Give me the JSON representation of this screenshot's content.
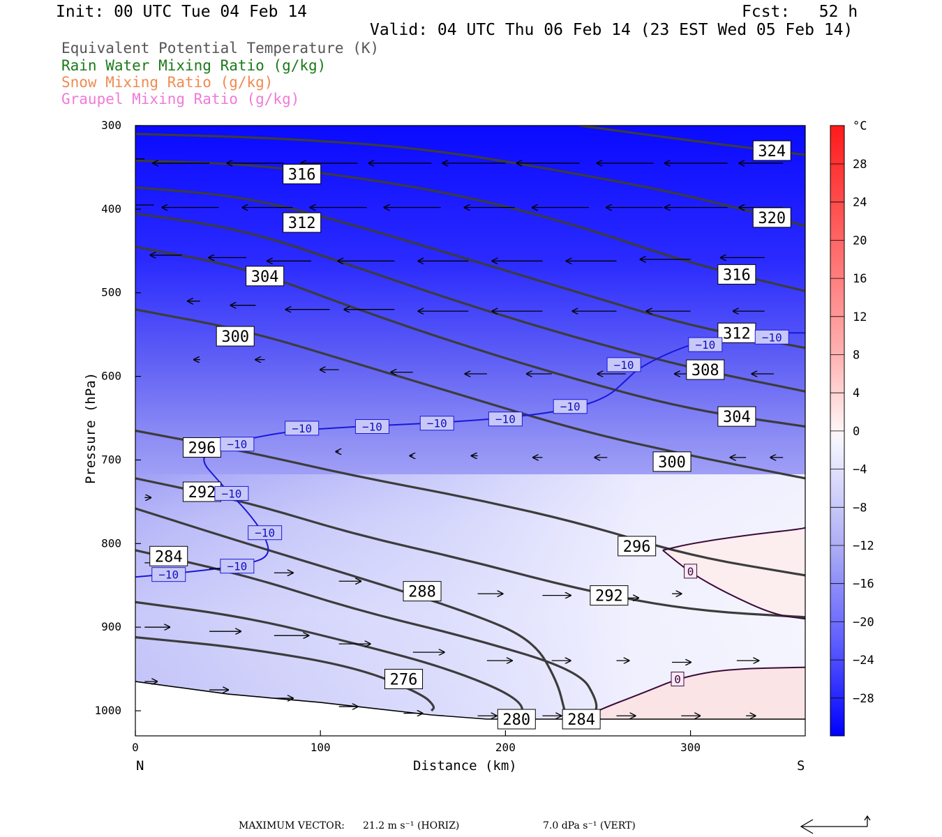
{
  "header": {
    "init": "Init: 00 UTC Tue 04 Feb 14",
    "fcst": "Fcst:   52 h",
    "valid": "Valid: 04 UTC Thu 06 Feb 14 (23 EST Wed 05 Feb 14)"
  },
  "legend": [
    {
      "label": "Equivalent Potential Temperature (K)",
      "color": "#555555"
    },
    {
      "label": "Rain Water Mixing Ratio (g/kg)",
      "color": "#1a7a1a"
    },
    {
      "label": "Snow Mixing Ratio (g/kg)",
      "color": "#f08a50"
    },
    {
      "label": "Graupel Mixing Ratio (g/kg)",
      "color": "#f07ad8"
    }
  ],
  "axes": {
    "ylabel": "Pressure (hPa)",
    "xlabel": "Distance (km)",
    "left_end": "N",
    "right_end": "S"
  },
  "footer": {
    "max_vector_label": "MAXIMUM VECTOR:",
    "horiz": "21.2 m s⁻¹ (HORIZ)",
    "vert": "7.0 dPa s⁻¹ (VERT)"
  },
  "colorbar": {
    "unit": "°C",
    "labels": [
      "28",
      "24",
      "20",
      "16",
      "12",
      "8",
      "4",
      "0",
      "−4",
      "−8",
      "−12",
      "−16",
      "−20",
      "−24",
      "−28"
    ]
  },
  "chart_data": {
    "type": "cross-section",
    "x_ticks": [
      "0",
      "100",
      "200",
      "300"
    ],
    "y_ticks": [
      "300",
      "400",
      "500",
      "600",
      "700",
      "800",
      "900",
      "1000"
    ],
    "xlim": [
      0,
      362
    ],
    "ylim": [
      300,
      1030
    ],
    "theta_e": [
      {
        "label": "324",
        "pts": [
          [
            240,
            300
          ],
          [
            300,
            318
          ],
          [
            362,
            335
          ]
        ]
      },
      {
        "label": "320",
        "pts": [
          [
            0,
            310
          ],
          [
            80,
            315
          ],
          [
            160,
            328
          ],
          [
            240,
            358
          ],
          [
            300,
            384
          ],
          [
            362,
            420
          ]
        ]
      },
      {
        "label": "316",
        "pts": [
          [
            0,
            342
          ],
          [
            60,
            346
          ],
          [
            120,
            362
          ],
          [
            180,
            385
          ],
          [
            240,
            420
          ],
          [
            300,
            465
          ],
          [
            362,
            498
          ]
        ]
      },
      {
        "label": "312",
        "pts": [
          [
            0,
            374
          ],
          [
            60,
            385
          ],
          [
            120,
            420
          ],
          [
            180,
            460
          ],
          [
            240,
            500
          ],
          [
            300,
            540
          ],
          [
            362,
            566
          ]
        ]
      },
      {
        "label": "308",
        "pts": [
          [
            0,
            405
          ],
          [
            60,
            425
          ],
          [
            120,
            470
          ],
          [
            180,
            515
          ],
          [
            240,
            555
          ],
          [
            300,
            590
          ],
          [
            362,
            618
          ]
        ]
      },
      {
        "label": "304",
        "pts": [
          [
            0,
            445
          ],
          [
            60,
            470
          ],
          [
            120,
            520
          ],
          [
            180,
            565
          ],
          [
            240,
            605
          ],
          [
            300,
            640
          ],
          [
            362,
            660
          ]
        ]
      },
      {
        "label": "300",
        "pts": [
          [
            0,
            520
          ],
          [
            60,
            545
          ],
          [
            120,
            585
          ],
          [
            180,
            625
          ],
          [
            240,
            665
          ],
          [
            300,
            695
          ],
          [
            362,
            722
          ]
        ]
      },
      {
        "label": "296",
        "pts": [
          [
            0,
            665
          ],
          [
            60,
            690
          ],
          [
            120,
            720
          ],
          [
            180,
            745
          ],
          [
            240,
            775
          ],
          [
            300,
            815
          ],
          [
            362,
            838
          ]
        ]
      },
      {
        "label": "292",
        "pts": [
          [
            0,
            722
          ],
          [
            60,
            750
          ],
          [
            120,
            790
          ],
          [
            180,
            820
          ],
          [
            240,
            855
          ],
          [
            300,
            880
          ],
          [
            362,
            888
          ]
        ]
      },
      {
        "label": "288",
        "pts": [
          [
            0,
            758
          ],
          [
            60,
            800
          ],
          [
            120,
            840
          ],
          [
            180,
            882
          ],
          [
            215,
            915
          ],
          [
            228,
            965
          ],
          [
            232,
            1000
          ]
        ]
      },
      {
        "label": "284",
        "pts": [
          [
            0,
            808
          ],
          [
            60,
            838
          ],
          [
            120,
            880
          ],
          [
            180,
            912
          ],
          [
            240,
            952
          ],
          [
            250,
            990
          ],
          [
            248,
            1005
          ]
        ]
      },
      {
        "label": "280",
        "pts": [
          [
            0,
            870
          ],
          [
            60,
            888
          ],
          [
            120,
            920
          ],
          [
            170,
            950
          ],
          [
            208,
            985
          ],
          [
            210,
            1010
          ]
        ]
      },
      {
        "label": "276",
        "pts": [
          [
            0,
            912
          ],
          [
            60,
            925
          ],
          [
            120,
            948
          ],
          [
            155,
            980
          ],
          [
            162,
            995
          ],
          [
            160,
            1000
          ]
        ]
      }
    ],
    "theta_e_labels": [
      {
        "text": "324",
        "x": 344,
        "y": 330
      },
      {
        "text": "316",
        "x": 90,
        "y": 358
      },
      {
        "text": "320",
        "x": 344,
        "y": 410
      },
      {
        "text": "312",
        "x": 90,
        "y": 416
      },
      {
        "text": "316",
        "x": 325,
        "y": 478
      },
      {
        "text": "304",
        "x": 70,
        "y": 480
      },
      {
        "text": "300",
        "x": 54,
        "y": 552
      },
      {
        "text": "312",
        "x": 325,
        "y": 548
      },
      {
        "text": "308",
        "x": 308,
        "y": 592
      },
      {
        "text": "304",
        "x": 325,
        "y": 648
      },
      {
        "text": "300",
        "x": 290,
        "y": 702
      },
      {
        "text": "296",
        "x": 36,
        "y": 685
      },
      {
        "text": "292",
        "x": 36,
        "y": 738
      },
      {
        "text": "296",
        "x": 271,
        "y": 803
      },
      {
        "text": "284",
        "x": 18,
        "y": 815
      },
      {
        "text": "288",
        "x": 155,
        "y": 857
      },
      {
        "text": "292",
        "x": 256,
        "y": 862
      },
      {
        "text": "276",
        "x": 145,
        "y": 962
      },
      {
        "text": "280",
        "x": 206,
        "y": 1010
      },
      {
        "text": "284",
        "x": 241,
        "y": 1010
      }
    ],
    "isotherm_minus10": {
      "label": "−10",
      "pts": [
        [
          0,
          840
        ],
        [
          20,
          836
        ],
        [
          45,
          830
        ],
        [
          60,
          825
        ],
        [
          73,
          815
        ],
        [
          70,
          790
        ],
        [
          60,
          760
        ],
        [
          50,
          738
        ],
        [
          45,
          725
        ],
        [
          35,
          700
        ],
        [
          42,
          685
        ],
        [
          60,
          675
        ],
        [
          85,
          665
        ],
        [
          120,
          660
        ],
        [
          160,
          656
        ],
        [
          200,
          650
        ],
        [
          235,
          640
        ],
        [
          255,
          625
        ],
        [
          265,
          605
        ],
        [
          272,
          590
        ],
        [
          290,
          570
        ],
        [
          310,
          555
        ],
        [
          340,
          548
        ],
        [
          362,
          548
        ]
      ],
      "labels": [
        [
          18,
          837
        ],
        [
          55,
          827
        ],
        [
          70,
          787
        ],
        [
          52,
          740
        ],
        [
          55,
          681
        ],
        [
          90,
          662
        ],
        [
          128,
          660
        ],
        [
          163,
          656
        ],
        [
          200,
          651
        ],
        [
          235,
          636
        ],
        [
          264,
          586
        ],
        [
          308,
          562
        ],
        [
          344,
          553
        ]
      ]
    },
    "isotherm_zero": [
      {
        "label": "0",
        "pts": [
          [
            285,
            808
          ],
          [
            300,
            800
          ],
          [
            330,
            790
          ],
          [
            362,
            782
          ],
          [
            362,
            780
          ]
        ],
        "pts2": [
          [
            285,
            808
          ],
          [
            300,
            835
          ],
          [
            320,
            860
          ],
          [
            345,
            885
          ],
          [
            362,
            890
          ]
        ]
      },
      {
        "label": "0",
        "pts": [
          [
            240,
            1010
          ],
          [
            255,
            995
          ],
          [
            275,
            978
          ],
          [
            295,
            960
          ],
          [
            320,
            950
          ],
          [
            362,
            948
          ]
        ]
      }
    ],
    "zero_labels": [
      [
        300,
        833
      ],
      [
        293,
        962
      ]
    ],
    "terrain": [
      [
        0,
        965
      ],
      [
        50,
        980
      ],
      [
        100,
        990
      ],
      [
        160,
        1005
      ],
      [
        190,
        1010
      ],
      [
        362,
        1010
      ]
    ],
    "temperature_field_note": "Filled temperature shading from about -32 °C (top) to about +2 °C near the surface in the south",
    "wind_vectors": [
      {
        "x": 5,
        "p": 340,
        "u": -1.0
      },
      {
        "x": 40,
        "p": 345,
        "u": -0.9
      },
      {
        "x": 80,
        "p": 345,
        "u": -0.9
      },
      {
        "x": 120,
        "p": 345,
        "u": -0.9
      },
      {
        "x": 160,
        "p": 345,
        "u": -1.0
      },
      {
        "x": 200,
        "p": 345,
        "u": -1.0
      },
      {
        "x": 240,
        "p": 345,
        "u": -1.0
      },
      {
        "x": 280,
        "p": 345,
        "u": -0.9
      },
      {
        "x": 320,
        "p": 345,
        "u": -1.0
      },
      {
        "x": 350,
        "p": 345,
        "u": -0.7
      },
      {
        "x": 10,
        "p": 395,
        "u": -0.8
      },
      {
        "x": 45,
        "p": 398,
        "u": -0.9
      },
      {
        "x": 85,
        "p": 398,
        "u": -0.8
      },
      {
        "x": 125,
        "p": 398,
        "u": -0.9
      },
      {
        "x": 165,
        "p": 398,
        "u": -0.9
      },
      {
        "x": 205,
        "p": 398,
        "u": -0.8
      },
      {
        "x": 245,
        "p": 398,
        "u": -0.9
      },
      {
        "x": 285,
        "p": 398,
        "u": -0.9
      },
      {
        "x": 320,
        "p": 398,
        "u": -1.0
      },
      {
        "x": 350,
        "p": 398,
        "u": -0.7
      },
      {
        "x": 25,
        "p": 455,
        "u": -0.5
      },
      {
        "x": 60,
        "p": 458,
        "u": -0.6
      },
      {
        "x": 95,
        "p": 462,
        "u": -0.7
      },
      {
        "x": 140,
        "p": 462,
        "u": -0.9
      },
      {
        "x": 180,
        "p": 462,
        "u": -0.8
      },
      {
        "x": 220,
        "p": 462,
        "u": -0.8
      },
      {
        "x": 260,
        "p": 462,
        "u": -0.8
      },
      {
        "x": 300,
        "p": 460,
        "u": -0.8
      },
      {
        "x": 340,
        "p": 458,
        "u": -0.7
      },
      {
        "x": 35,
        "p": 510,
        "u": -0.2
      },
      {
        "x": 65,
        "p": 515,
        "u": -0.4
      },
      {
        "x": 105,
        "p": 520,
        "u": -0.7
      },
      {
        "x": 140,
        "p": 520,
        "u": -0.8
      },
      {
        "x": 180,
        "p": 522,
        "u": -0.8
      },
      {
        "x": 220,
        "p": 522,
        "u": -0.8
      },
      {
        "x": 260,
        "p": 522,
        "u": -0.7
      },
      {
        "x": 300,
        "p": 522,
        "u": -0.7
      },
      {
        "x": 340,
        "p": 522,
        "u": -0.5
      },
      {
        "x": 35,
        "p": 580,
        "u": -0.1
      },
      {
        "x": 70,
        "p": 580,
        "u": -0.15
      },
      {
        "x": 110,
        "p": 592,
        "u": -0.3
      },
      {
        "x": 150,
        "p": 595,
        "u": -0.35
      },
      {
        "x": 190,
        "p": 597,
        "u": -0.35
      },
      {
        "x": 225,
        "p": 597,
        "u": -0.4
      },
      {
        "x": 265,
        "p": 597,
        "u": -0.45
      },
      {
        "x": 305,
        "p": 597,
        "u": -0.4
      },
      {
        "x": 345,
        "p": 597,
        "u": -0.35
      },
      {
        "x": 110,
        "p": 690,
        "u": -0.05
      },
      {
        "x": 150,
        "p": 695,
        "u": -0.05
      },
      {
        "x": 185,
        "p": 695,
        "u": -0.1
      },
      {
        "x": 220,
        "p": 697,
        "u": -0.15
      },
      {
        "x": 255,
        "p": 697,
        "u": -0.2
      },
      {
        "x": 295,
        "p": 697,
        "u": -0.25
      },
      {
        "x": 330,
        "p": 697,
        "u": -0.25
      },
      {
        "x": 350,
        "p": 697,
        "u": -0.2
      },
      {
        "x": 5,
        "p": 745,
        "u": 0.1
      },
      {
        "x": 5,
        "p": 823,
        "u": 0.3
      },
      {
        "x": 40,
        "p": 830,
        "u": 0.3
      },
      {
        "x": 75,
        "p": 835,
        "u": 0.3
      },
      {
        "x": 110,
        "p": 845,
        "u": 0.35
      },
      {
        "x": 145,
        "p": 850,
        "u": 0.4
      },
      {
        "x": 185,
        "p": 860,
        "u": 0.4
      },
      {
        "x": 220,
        "p": 862,
        "u": 0.45
      },
      {
        "x": 260,
        "p": 865,
        "u": 0.35
      },
      {
        "x": 290,
        "p": 860,
        "u": 0.15
      },
      {
        "x": 5,
        "p": 900,
        "u": 0.4
      },
      {
        "x": 40,
        "p": 905,
        "u": 0.5
      },
      {
        "x": 75,
        "p": 910,
        "u": 0.55
      },
      {
        "x": 110,
        "p": 920,
        "u": 0.5
      },
      {
        "x": 150,
        "p": 930,
        "u": 0.5
      },
      {
        "x": 190,
        "p": 940,
        "u": 0.4
      },
      {
        "x": 225,
        "p": 940,
        "u": 0.3
      },
      {
        "x": 260,
        "p": 940,
        "u": 0.2
      },
      {
        "x": 290,
        "p": 942,
        "u": 0.3
      },
      {
        "x": 325,
        "p": 940,
        "u": 0.35
      },
      {
        "x": 5,
        "p": 965,
        "u": 0.2
      },
      {
        "x": 40,
        "p": 975,
        "u": 0.3
      },
      {
        "x": 75,
        "p": 985,
        "u": 0.3
      },
      {
        "x": 110,
        "p": 995,
        "u": 0.3
      },
      {
        "x": 145,
        "p": 1003,
        "u": 0.3
      },
      {
        "x": 185,
        "p": 1006,
        "u": 0.3
      },
      {
        "x": 220,
        "p": 1006,
        "u": 0.3
      },
      {
        "x": 260,
        "p": 1006,
        "u": 0.3
      },
      {
        "x": 295,
        "p": 1006,
        "u": 0.3
      },
      {
        "x": 330,
        "p": 1006,
        "u": 0.15
      }
    ]
  }
}
